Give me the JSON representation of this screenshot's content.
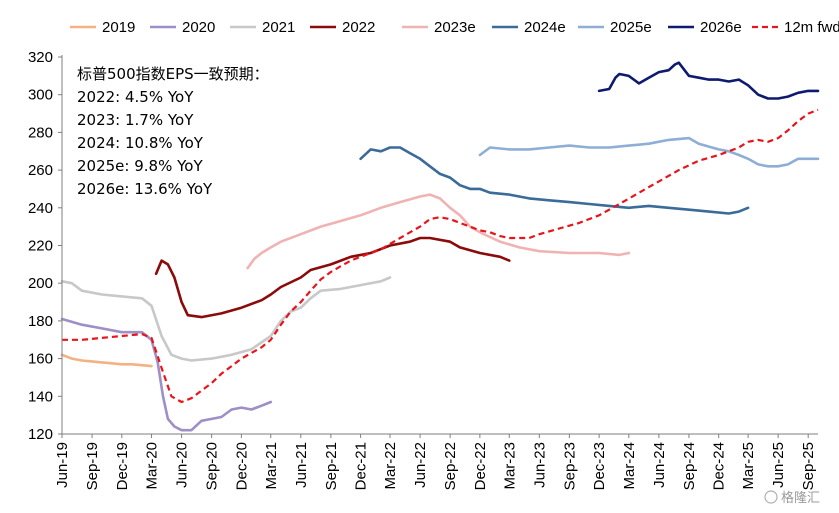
{
  "chart_data": {
    "type": "line",
    "title": "",
    "xlabel": "",
    "ylabel": "",
    "ylim": [
      120,
      320
    ],
    "yticks": [
      120,
      140,
      160,
      180,
      200,
      220,
      240,
      260,
      280,
      300,
      320
    ],
    "xlim": [
      "2019-06",
      "2025-10"
    ],
    "xticks": [
      "Jun-19",
      "Sep-19",
      "Dec-19",
      "Mar-20",
      "Jun-20",
      "Sep-20",
      "Dec-20",
      "Mar-21",
      "Jun-21",
      "Sep-21",
      "Dec-21",
      "Mar-22",
      "Jun-22",
      "Sep-22",
      "Dec-22",
      "Mar-23",
      "Jun-23",
      "Sep-23",
      "Dec-23",
      "Mar-24",
      "Jun-24",
      "Sep-24",
      "Dec-24",
      "Mar-25",
      "Jun-25",
      "Sep-25"
    ],
    "grid": false,
    "legend": "top",
    "annotation": {
      "title": "标普500指数EPS一致预期：",
      "lines": [
        "2022: 4.5% YoY",
        "2023:  1.7% YoY",
        "2024:  10.8% YoY",
        "2025e:  9.8% YoY",
        "2026e:  13.6% YoY"
      ]
    },
    "series": [
      {
        "name": "2019",
        "color": "#f4b183",
        "dash": false,
        "points": [
          [
            "2019-06-01",
            162
          ],
          [
            "2019-07-01",
            160
          ],
          [
            "2019-08-01",
            159
          ],
          [
            "2019-09-01",
            158.5
          ],
          [
            "2019-10-01",
            158
          ],
          [
            "2019-11-01",
            157.5
          ],
          [
            "2019-12-01",
            157
          ],
          [
            "2020-01-01",
            157
          ],
          [
            "2020-02-01",
            156.5
          ],
          [
            "2020-03-01",
            156
          ]
        ]
      },
      {
        "name": "2020",
        "color": "#9e8fc6",
        "dash": false,
        "points": [
          [
            "2019-06-01",
            181
          ],
          [
            "2019-08-01",
            178
          ],
          [
            "2019-10-01",
            176
          ],
          [
            "2019-12-01",
            174
          ],
          [
            "2020-02-01",
            174
          ],
          [
            "2020-03-01",
            170
          ],
          [
            "2020-03-20",
            158
          ],
          [
            "2020-04-05",
            140
          ],
          [
            "2020-04-20",
            128
          ],
          [
            "2020-05-10",
            124
          ],
          [
            "2020-06-01",
            122
          ],
          [
            "2020-07-01",
            122
          ],
          [
            "2020-08-01",
            127
          ],
          [
            "2020-09-01",
            128
          ],
          [
            "2020-10-01",
            129
          ],
          [
            "2020-11-01",
            133
          ],
          [
            "2020-12-01",
            134
          ],
          [
            "2021-01-01",
            133
          ],
          [
            "2021-02-01",
            135
          ],
          [
            "2021-03-01",
            137
          ]
        ]
      },
      {
        "name": "2021",
        "color": "#c8c8c8",
        "dash": false,
        "points": [
          [
            "2019-06-01",
            201
          ],
          [
            "2019-07-01",
            200
          ],
          [
            "2019-08-01",
            196
          ],
          [
            "2019-10-01",
            194
          ],
          [
            "2019-12-01",
            193
          ],
          [
            "2020-02-01",
            192
          ],
          [
            "2020-03-01",
            188
          ],
          [
            "2020-04-01",
            172
          ],
          [
            "2020-05-01",
            162
          ],
          [
            "2020-06-01",
            160
          ],
          [
            "2020-07-01",
            159
          ],
          [
            "2020-09-01",
            160
          ],
          [
            "2020-11-01",
            162
          ],
          [
            "2021-01-01",
            165
          ],
          [
            "2021-03-01",
            172
          ],
          [
            "2021-04-01",
            180
          ],
          [
            "2021-05-01",
            185
          ],
          [
            "2021-06-01",
            187
          ],
          [
            "2021-07-01",
            192
          ],
          [
            "2021-08-01",
            196
          ],
          [
            "2021-10-01",
            197
          ],
          [
            "2021-12-01",
            199
          ],
          [
            "2022-02-01",
            201
          ],
          [
            "2022-03-01",
            203
          ]
        ]
      },
      {
        "name": "2022",
        "color": "#8b0a0a",
        "dash": false,
        "points": [
          [
            "2020-03-15",
            205
          ],
          [
            "2020-04-01",
            212
          ],
          [
            "2020-04-20",
            210
          ],
          [
            "2020-05-10",
            203
          ],
          [
            "2020-06-01",
            190
          ],
          [
            "2020-06-20",
            183
          ],
          [
            "2020-08-01",
            182
          ],
          [
            "2020-10-01",
            184
          ],
          [
            "2020-12-01",
            187
          ],
          [
            "2021-02-01",
            191
          ],
          [
            "2021-03-01",
            194
          ],
          [
            "2021-04-01",
            198
          ],
          [
            "2021-06-01",
            203
          ],
          [
            "2021-07-01",
            207
          ],
          [
            "2021-09-01",
            210
          ],
          [
            "2021-11-01",
            214
          ],
          [
            "2022-01-01",
            216
          ],
          [
            "2022-03-01",
            220
          ],
          [
            "2022-05-01",
            222
          ],
          [
            "2022-06-01",
            224
          ],
          [
            "2022-07-01",
            224
          ],
          [
            "2022-09-01",
            222
          ],
          [
            "2022-10-01",
            219
          ],
          [
            "2022-12-01",
            216
          ],
          [
            "2023-02-01",
            214
          ],
          [
            "2023-03-01",
            212
          ]
        ]
      },
      {
        "name": "2023e",
        "color": "#f0b3b3",
        "dash": false,
        "points": [
          [
            "2020-12-20",
            208
          ],
          [
            "2021-01-10",
            213
          ],
          [
            "2021-02-01",
            216
          ],
          [
            "2021-03-01",
            219
          ],
          [
            "2021-04-01",
            222
          ],
          [
            "2021-06-01",
            226
          ],
          [
            "2021-08-01",
            230
          ],
          [
            "2021-10-01",
            233
          ],
          [
            "2021-12-01",
            236
          ],
          [
            "2022-02-01",
            240
          ],
          [
            "2022-04-01",
            243
          ],
          [
            "2022-06-01",
            246
          ],
          [
            "2022-07-01",
            247
          ],
          [
            "2022-08-01",
            245
          ],
          [
            "2022-09-01",
            240
          ],
          [
            "2022-10-01",
            236
          ],
          [
            "2022-11-01",
            230
          ],
          [
            "2022-12-01",
            227
          ],
          [
            "2023-02-01",
            222
          ],
          [
            "2023-04-01",
            219
          ],
          [
            "2023-06-01",
            217
          ],
          [
            "2023-09-01",
            216
          ],
          [
            "2023-12-01",
            216
          ],
          [
            "2024-02-01",
            215
          ],
          [
            "2024-03-01",
            216
          ]
        ]
      },
      {
        "name": "2024e",
        "color": "#3a6b99",
        "dash": false,
        "points": [
          [
            "2021-12-01",
            266
          ],
          [
            "2022-01-01",
            271
          ],
          [
            "2022-02-01",
            270
          ],
          [
            "2022-03-01",
            272
          ],
          [
            "2022-04-01",
            272
          ],
          [
            "2022-05-01",
            269
          ],
          [
            "2022-06-01",
            266
          ],
          [
            "2022-07-01",
            262
          ],
          [
            "2022-08-01",
            258
          ],
          [
            "2022-09-01",
            256
          ],
          [
            "2022-10-01",
            252
          ],
          [
            "2022-11-01",
            250
          ],
          [
            "2022-12-01",
            250
          ],
          [
            "2023-01-01",
            248
          ],
          [
            "2023-03-01",
            247
          ],
          [
            "2023-05-01",
            245
          ],
          [
            "2023-07-01",
            244
          ],
          [
            "2023-09-01",
            243
          ],
          [
            "2023-11-01",
            242
          ],
          [
            "2024-01-01",
            241
          ],
          [
            "2024-03-01",
            240
          ],
          [
            "2024-05-01",
            241
          ],
          [
            "2024-07-01",
            240
          ],
          [
            "2024-09-01",
            239
          ],
          [
            "2024-11-01",
            238
          ],
          [
            "2025-01-01",
            237
          ],
          [
            "2025-02-01",
            238
          ],
          [
            "2025-03-01",
            240
          ]
        ]
      },
      {
        "name": "2025e",
        "color": "#8eaed6",
        "dash": false,
        "points": [
          [
            "2022-12-01",
            268
          ],
          [
            "2023-01-01",
            272
          ],
          [
            "2023-03-01",
            271
          ],
          [
            "2023-05-01",
            271
          ],
          [
            "2023-07-01",
            272
          ],
          [
            "2023-09-01",
            273
          ],
          [
            "2023-11-01",
            272
          ],
          [
            "2024-01-01",
            272
          ],
          [
            "2024-03-01",
            273
          ],
          [
            "2024-05-01",
            274
          ],
          [
            "2024-07-01",
            276
          ],
          [
            "2024-09-01",
            277
          ],
          [
            "2024-10-01",
            274
          ],
          [
            "2024-12-01",
            271
          ],
          [
            "2025-01-01",
            270
          ],
          [
            "2025-02-01",
            268
          ],
          [
            "2025-03-01",
            266
          ],
          [
            "2025-04-01",
            263
          ],
          [
            "2025-05-01",
            262
          ],
          [
            "2025-06-01",
            262
          ],
          [
            "2025-07-01",
            263
          ],
          [
            "2025-08-01",
            266
          ],
          [
            "2025-09-01",
            266
          ],
          [
            "2025-10-01",
            266
          ]
        ]
      },
      {
        "name": "2026e",
        "color": "#0d1a6e",
        "dash": false,
        "points": [
          [
            "2023-12-01",
            302
          ],
          [
            "2024-01-01",
            303
          ],
          [
            "2024-01-20",
            309
          ],
          [
            "2024-02-01",
            311
          ],
          [
            "2024-03-01",
            310
          ],
          [
            "2024-04-01",
            306
          ],
          [
            "2024-05-01",
            309
          ],
          [
            "2024-06-01",
            312
          ],
          [
            "2024-07-01",
            313
          ],
          [
            "2024-07-20",
            316
          ],
          [
            "2024-08-01",
            317
          ],
          [
            "2024-09-01",
            310
          ],
          [
            "2024-10-01",
            309
          ],
          [
            "2024-11-01",
            308
          ],
          [
            "2024-12-01",
            308
          ],
          [
            "2025-01-01",
            307
          ],
          [
            "2025-02-01",
            308
          ],
          [
            "2025-03-01",
            305
          ],
          [
            "2025-04-01",
            300
          ],
          [
            "2025-05-01",
            298
          ],
          [
            "2025-06-01",
            298
          ],
          [
            "2025-07-01",
            299
          ],
          [
            "2025-08-01",
            301
          ],
          [
            "2025-09-01",
            302
          ],
          [
            "2025-10-01",
            302
          ]
        ]
      },
      {
        "name": "12m fwd",
        "color": "#e8141b",
        "dash": true,
        "points": [
          [
            "2019-06-01",
            170
          ],
          [
            "2019-08-01",
            170
          ],
          [
            "2019-10-01",
            171
          ],
          [
            "2019-12-01",
            172
          ],
          [
            "2020-02-01",
            173
          ],
          [
            "2020-03-01",
            171
          ],
          [
            "2020-04-01",
            155
          ],
          [
            "2020-05-01",
            140
          ],
          [
            "2020-06-01",
            137
          ],
          [
            "2020-07-01",
            139
          ],
          [
            "2020-08-01",
            143
          ],
          [
            "2020-09-01",
            147
          ],
          [
            "2020-10-01",
            152
          ],
          [
            "2020-11-01",
            156
          ],
          [
            "2020-12-01",
            160
          ],
          [
            "2021-01-01",
            163
          ],
          [
            "2021-02-01",
            166
          ],
          [
            "2021-03-01",
            170
          ],
          [
            "2021-04-01",
            178
          ],
          [
            "2021-05-01",
            185
          ],
          [
            "2021-06-01",
            190
          ],
          [
            "2021-07-01",
            196
          ],
          [
            "2021-08-01",
            202
          ],
          [
            "2021-09-01",
            206
          ],
          [
            "2021-10-01",
            209
          ],
          [
            "2021-11-01",
            212
          ],
          [
            "2021-12-01",
            214
          ],
          [
            "2022-02-01",
            218
          ],
          [
            "2022-04-01",
            224
          ],
          [
            "2022-06-01",
            230
          ],
          [
            "2022-07-01",
            234
          ],
          [
            "2022-08-01",
            235
          ],
          [
            "2022-09-01",
            234
          ],
          [
            "2022-10-01",
            232
          ],
          [
            "2022-11-01",
            230
          ],
          [
            "2022-12-01",
            228
          ],
          [
            "2023-01-01",
            227
          ],
          [
            "2023-02-01",
            225
          ],
          [
            "2023-03-01",
            224
          ],
          [
            "2023-05-01",
            224
          ],
          [
            "2023-06-01",
            226
          ],
          [
            "2023-08-01",
            229
          ],
          [
            "2023-10-01",
            232
          ],
          [
            "2023-12-01",
            236
          ],
          [
            "2024-02-01",
            242
          ],
          [
            "2024-04-01",
            248
          ],
          [
            "2024-06-01",
            254
          ],
          [
            "2024-08-01",
            260
          ],
          [
            "2024-10-01",
            265
          ],
          [
            "2024-12-01",
            268
          ],
          [
            "2025-02-01",
            272
          ],
          [
            "2025-03-01",
            275
          ],
          [
            "2025-04-01",
            276
          ],
          [
            "2025-05-01",
            275
          ],
          [
            "2025-06-01",
            277
          ],
          [
            "2025-07-01",
            281
          ],
          [
            "2025-08-01",
            286
          ],
          [
            "2025-09-01",
            290
          ],
          [
            "2025-10-01",
            292
          ]
        ]
      }
    ]
  },
  "watermark": "格隆汇"
}
